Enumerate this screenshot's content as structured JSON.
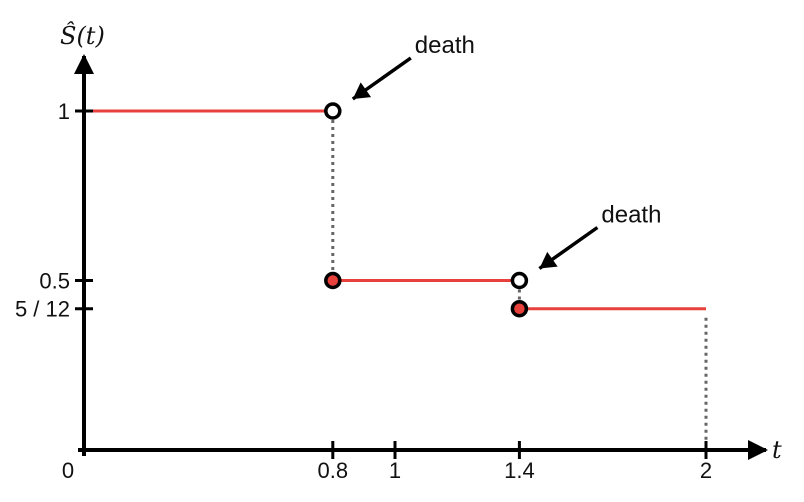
{
  "chart_data": {
    "type": "line",
    "title": "",
    "xlabel": "t",
    "ylabel": "Ŝ(t)",
    "xlim": [
      0,
      2.18
    ],
    "ylim": [
      0,
      1.27
    ],
    "grid": false,
    "x_ticks": [
      {
        "value": 0,
        "label": "0"
      },
      {
        "value": 0.8,
        "label": "0.8"
      },
      {
        "value": 1,
        "label": "1"
      },
      {
        "value": 1.4,
        "label": "1.4"
      },
      {
        "value": 2,
        "label": "2"
      }
    ],
    "y_ticks": [
      {
        "value": 1,
        "label": "1"
      },
      {
        "value": 0.5,
        "label": "0.5"
      },
      {
        "value": 0.4167,
        "label": "5 / 12"
      }
    ],
    "steps": [
      {
        "x_start": 0,
        "x_end": 0.8,
        "y": 1
      },
      {
        "x_start": 0.8,
        "x_end": 1.4,
        "y": 0.5
      },
      {
        "x_start": 1.4,
        "x_end": 2,
        "y": 0.4167
      }
    ],
    "open_points": [
      {
        "x": 0.8,
        "y": 1
      },
      {
        "x": 1.4,
        "y": 0.5
      }
    ],
    "filled_points": [
      {
        "x": 0.8,
        "y": 0.5
      },
      {
        "x": 1.4,
        "y": 0.4167
      }
    ],
    "dotted_verticals": [
      {
        "x": 0.8,
        "y_from": 1,
        "y_to": 0.5
      },
      {
        "x": 1.4,
        "y_from": 0.5,
        "y_to": 0.4167
      },
      {
        "x": 2,
        "y_from": 0.4167,
        "y_to": 0
      }
    ],
    "annotations": [
      {
        "text": "death",
        "x": 0.8,
        "y": 1
      },
      {
        "text": "death",
        "x": 1.4,
        "y": 0.5
      }
    ],
    "colors": {
      "step": "#e8413c",
      "axis": "#000000",
      "dotted": "#666666",
      "filled_point": "#e8413c"
    }
  }
}
